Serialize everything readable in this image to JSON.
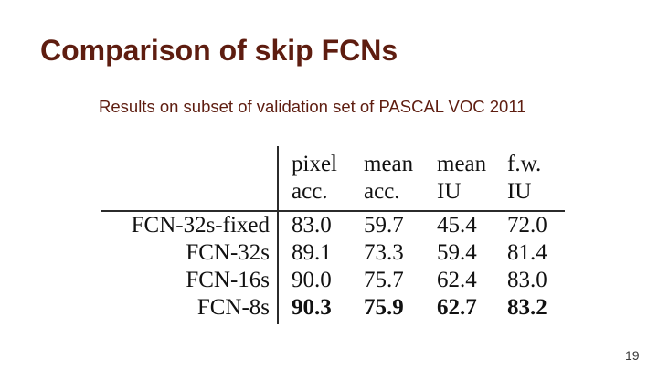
{
  "slide": {
    "title": "Comparison of skip FCNs",
    "subtitle": "Results on subset of validation set of PASCAL VOC 2011",
    "page_number": "19",
    "colors": {
      "background": "#ffffff",
      "heading_text": "#5e1d10",
      "table_text": "#111111",
      "rule": "#2b2b2b"
    }
  },
  "table": {
    "header": [
      {
        "line1": "pixel",
        "line2": "acc."
      },
      {
        "line1": "mean",
        "line2": "acc."
      },
      {
        "line1": "mean",
        "line2": "IU"
      },
      {
        "line1": "f.w.",
        "line2": "IU"
      }
    ],
    "rows": [
      {
        "label": "FCN-32s-fixed",
        "values": [
          "83.0",
          "59.7",
          "45.4",
          "72.0"
        ],
        "bold": false
      },
      {
        "label": "FCN-32s",
        "values": [
          "89.1",
          "73.3",
          "59.4",
          "81.4"
        ],
        "bold": false
      },
      {
        "label": "FCN-16s",
        "values": [
          "90.0",
          "75.7",
          "62.4",
          "83.0"
        ],
        "bold": false
      },
      {
        "label": "FCN-8s",
        "values": [
          "90.3",
          "75.9",
          "62.7",
          "83.2"
        ],
        "bold": true
      }
    ]
  },
  "chart_data": {
    "type": "table",
    "title": "Comparison of skip FCNs",
    "columns": [
      "model",
      "pixel acc.",
      "mean acc.",
      "mean IU",
      "f.w. IU"
    ],
    "rows": [
      [
        "FCN-32s-fixed",
        83.0,
        59.7,
        45.4,
        72.0
      ],
      [
        "FCN-32s",
        89.1,
        73.3,
        59.4,
        81.4
      ],
      [
        "FCN-16s",
        90.0,
        75.7,
        62.4,
        83.0
      ],
      [
        "FCN-8s",
        90.3,
        75.9,
        62.7,
        83.2
      ]
    ]
  }
}
